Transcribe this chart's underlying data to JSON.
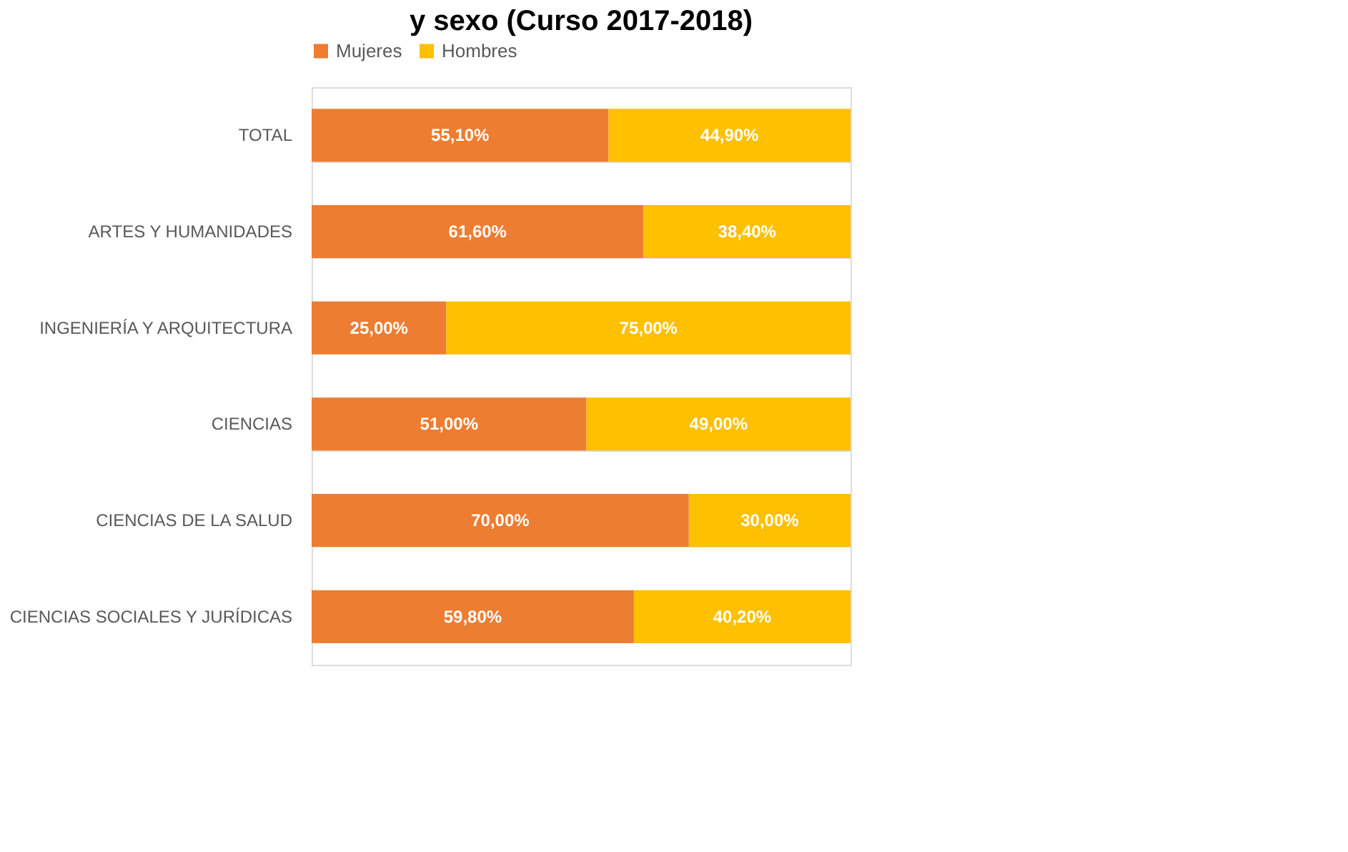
{
  "chart_data": {
    "type": "bar",
    "title": "y sexo (Curso 2017-2018)",
    "orientation": "horizontal",
    "stacked": true,
    "legend": "top",
    "grid": "y",
    "categories": [
      "TOTAL",
      "ARTES Y HUMANIDADES",
      "INGENIERÍA Y ARQUITECTURA",
      "CIENCIAS",
      "CIENCIAS DE LA SALUD",
      "CIENCIAS SOCIALES Y JURÍDICAS"
    ],
    "series": [
      {
        "name": "Mujeres",
        "color": "#ed7d31",
        "values": [
          55.1,
          61.6,
          25.0,
          51.0,
          70.0,
          59.8
        ],
        "value_labels": [
          "55,10%",
          "61,60%",
          "25,00%",
          "51,00%",
          "70,00%",
          "59,80%"
        ]
      },
      {
        "name": "Hombres",
        "color": "#ffc000",
        "values": [
          44.9,
          38.4,
          75.0,
          49.0,
          30.0,
          40.2
        ],
        "value_labels": [
          "44,90%",
          "38,40%",
          "75,00%",
          "49,00%",
          "30,00%",
          "40,20%"
        ]
      }
    ]
  }
}
